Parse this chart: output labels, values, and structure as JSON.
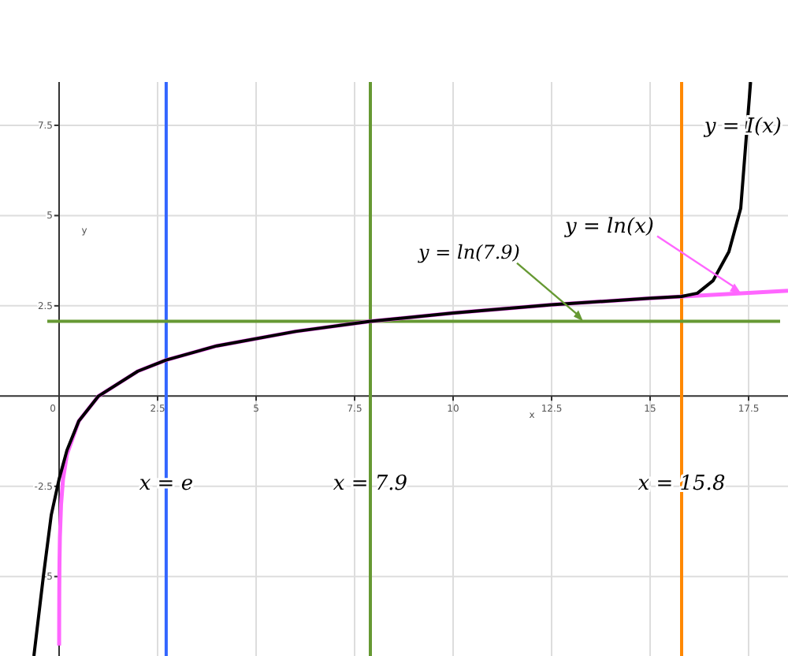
{
  "chart_data": {
    "type": "line",
    "xlabel": "x",
    "ylabel": "y",
    "xlim": [
      -1.5,
      18.5
    ],
    "ylim": [
      -7.2,
      8.7
    ],
    "xticks": [
      0,
      2.5,
      5,
      7.5,
      10,
      12.5,
      15,
      17.5
    ],
    "yticks": [
      -5,
      -2.5,
      2.5,
      5,
      7.5
    ],
    "grid": true,
    "marker": "none",
    "line_style": "solid",
    "series": [
      {
        "name": "y = ln(x)",
        "color": "#ff66ff",
        "x": [
          0.001,
          0.002,
          0.005,
          0.01,
          0.02,
          0.05,
          0.1,
          0.2,
          0.5,
          1,
          2,
          2.718,
          4,
          6,
          7.9,
          10,
          12.5,
          15,
          17.5,
          18.5
        ],
        "values": [
          -6.91,
          -6.21,
          -5.3,
          -4.61,
          -3.91,
          -3,
          -2.3,
          -1.61,
          -0.69,
          0,
          0.69,
          1,
          1.39,
          1.79,
          2.07,
          2.3,
          2.53,
          2.71,
          2.86,
          2.92
        ]
      },
      {
        "name": "y = I(x)",
        "color": "#000000",
        "x": [
          -0.64,
          -0.4,
          -0.2,
          0,
          0.2,
          0.5,
          1,
          2,
          2.718,
          4,
          6,
          7.9,
          10,
          12.5,
          15,
          15.8,
          16.2,
          16.6,
          17,
          17.3,
          17.55
        ],
        "values": [
          -7.2,
          -5,
          -3.3,
          -2.3,
          -1.5,
          -0.69,
          0,
          0.69,
          1,
          1.39,
          1.79,
          2.07,
          2.3,
          2.53,
          2.71,
          2.76,
          2.85,
          3.2,
          4,
          5.2,
          8.7
        ]
      }
    ],
    "ref_lines": [
      {
        "axis": "x",
        "value": 2.718,
        "label": "x = e",
        "color": "#3366ff"
      },
      {
        "axis": "x",
        "value": 7.9,
        "label": "x = 7.9",
        "color": "#669933"
      },
      {
        "axis": "x",
        "value": 15.8,
        "label": "x = 15.8",
        "color": "#ff8800"
      },
      {
        "axis": "y",
        "value": 2.07,
        "label": "y = ln(7.9)",
        "color": "#669933"
      }
    ]
  }
}
